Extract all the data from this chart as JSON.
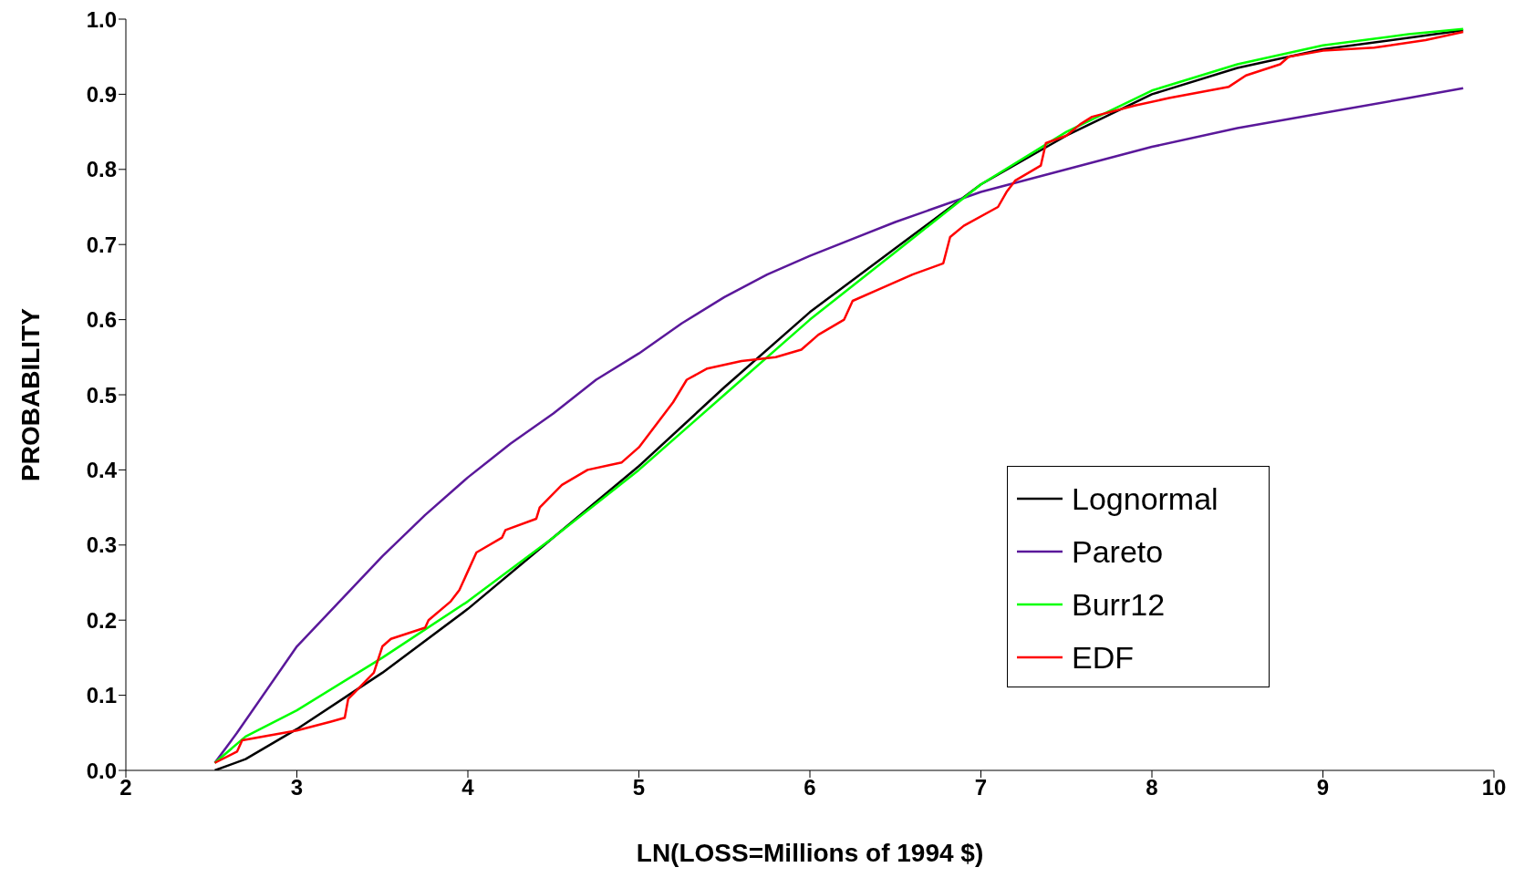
{
  "chart_data": {
    "type": "line",
    "xlabel": "LN(LOSS=Millions of 1994 $)",
    "ylabel": "PROBABILITY",
    "xlim": [
      2,
      10
    ],
    "xticks": [
      2,
      3,
      4,
      5,
      6,
      7,
      8,
      9,
      10
    ],
    "ylim": [
      0,
      1
    ],
    "yticks": [
      {
        "value": 0,
        "label": "0.0"
      },
      0.1,
      0.2,
      0.3,
      0.4,
      0.5,
      0.6,
      0.7,
      0.8,
      0.9,
      {
        "value": 1,
        "label": "1.0"
      }
    ],
    "grid": false,
    "legend": "right",
    "marker": "none",
    "line_style": "solid",
    "series": [
      {
        "name": "Lognormal",
        "color": "#000000",
        "x": [
          2.52,
          2.7,
          3,
          3.3,
          3.5,
          4,
          4.5,
          5,
          5.5,
          6,
          6.5,
          7,
          7.5,
          8,
          8.5,
          9,
          9.5,
          9.82
        ],
        "values": [
          0.0,
          0.015,
          0.055,
          0.1,
          0.13,
          0.215,
          0.31,
          0.405,
          0.51,
          0.61,
          0.695,
          0.78,
          0.845,
          0.9,
          0.935,
          0.96,
          0.975,
          0.985
        ]
      },
      {
        "name": "Pareto",
        "color": "#5a189a",
        "x": [
          2.52,
          2.65,
          3,
          3.25,
          3.5,
          3.75,
          4,
          4.25,
          4.5,
          4.75,
          5,
          5.25,
          5.5,
          5.75,
          6,
          6.5,
          7,
          7.5,
          8,
          8.5,
          9,
          9.5,
          9.82
        ],
        "values": [
          0.01,
          0.05,
          0.165,
          0.225,
          0.285,
          0.34,
          0.39,
          0.435,
          0.475,
          0.52,
          0.555,
          0.595,
          0.63,
          0.66,
          0.685,
          0.73,
          0.77,
          0.8,
          0.83,
          0.855,
          0.875,
          0.895,
          0.908
        ]
      },
      {
        "name": "Burr12",
        "color": "#00ff00",
        "x": [
          2.52,
          2.7,
          3,
          3.5,
          4,
          4.5,
          5,
          5.5,
          6,
          6.5,
          7,
          7.5,
          8,
          8.5,
          9,
          9.5,
          9.82
        ],
        "values": [
          0.01,
          0.045,
          0.08,
          0.15,
          0.225,
          0.31,
          0.4,
          0.5,
          0.6,
          0.69,
          0.78,
          0.85,
          0.905,
          0.94,
          0.965,
          0.98,
          0.987
        ]
      },
      {
        "name": "EDF",
        "color": "#ff0000",
        "x": [
          2.52,
          2.65,
          2.68,
          3.0,
          3.2,
          3.28,
          3.3,
          3.45,
          3.5,
          3.55,
          3.75,
          3.77,
          3.9,
          3.95,
          4.0,
          4.05,
          4.2,
          4.22,
          4.4,
          4.42,
          4.55,
          4.7,
          4.9,
          5.0,
          5.1,
          5.2,
          5.28,
          5.4,
          5.6,
          5.8,
          5.95,
          6.05,
          6.2,
          6.25,
          6.4,
          6.6,
          6.78,
          6.82,
          6.9,
          7.1,
          7.15,
          7.2,
          7.35,
          7.38,
          7.5,
          7.58,
          7.65,
          7.9,
          8.1,
          8.45,
          8.55,
          8.75,
          8.8,
          9.0,
          9.3,
          9.6,
          9.82
        ],
        "values": [
          0.01,
          0.025,
          0.04,
          0.053,
          0.065,
          0.07,
          0.095,
          0.13,
          0.165,
          0.175,
          0.19,
          0.2,
          0.225,
          0.24,
          0.265,
          0.29,
          0.31,
          0.32,
          0.335,
          0.35,
          0.38,
          0.4,
          0.41,
          0.43,
          0.46,
          0.49,
          0.52,
          0.535,
          0.545,
          0.55,
          0.56,
          0.58,
          0.6,
          0.625,
          0.64,
          0.66,
          0.675,
          0.71,
          0.725,
          0.75,
          0.77,
          0.785,
          0.805,
          0.835,
          0.845,
          0.86,
          0.87,
          0.885,
          0.895,
          0.91,
          0.925,
          0.94,
          0.95,
          0.958,
          0.962,
          0.972,
          0.983
        ]
      }
    ]
  }
}
